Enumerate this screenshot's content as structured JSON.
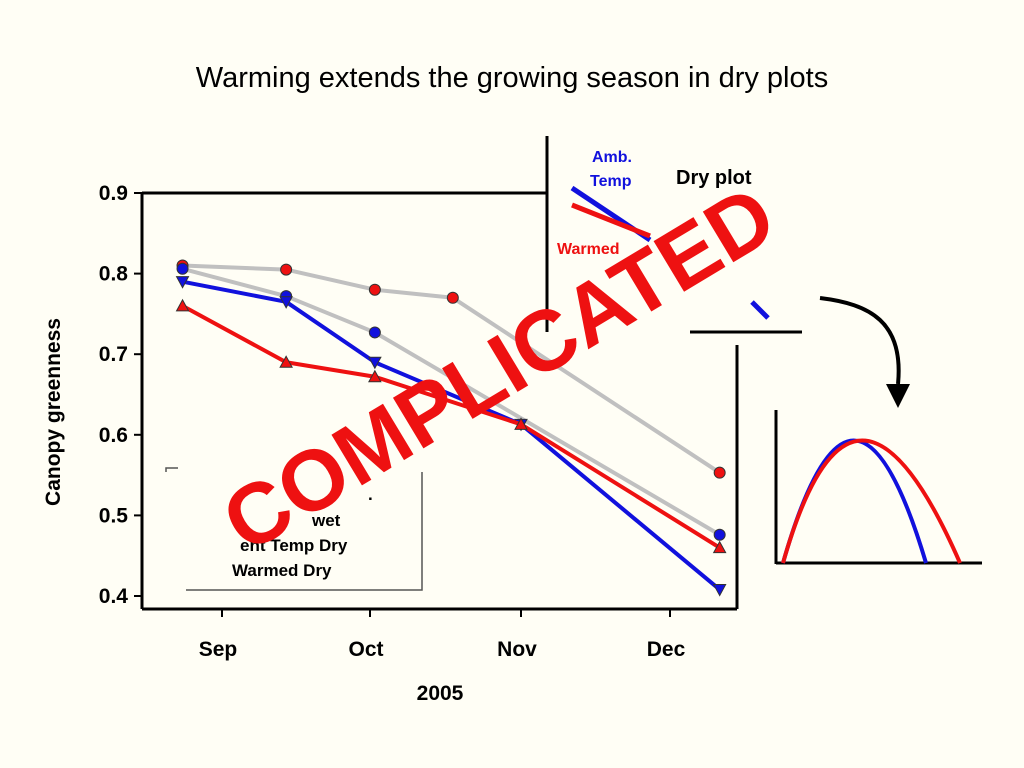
{
  "title": "Warming extends the growing season in dry plots",
  "stamp": "COMPLICATED",
  "colors": {
    "background": "#fffef5",
    "red": "#ee1111",
    "blue": "#1111dd",
    "gray": "#c0c0c0",
    "black": "#000000"
  },
  "chart_data": {
    "type": "line",
    "title": "",
    "xlabel": "2005",
    "ylabel": "Canopy greenness",
    "ylim": [
      0.4,
      0.9
    ],
    "yticks": [
      "0.4",
      "0.5",
      "0.6",
      "0.7",
      "0.8",
      "0.9"
    ],
    "x_categories": [
      "Sep",
      "Oct",
      "Nov",
      "Dec"
    ],
    "series": [
      {
        "name": "",
        "key": "wet_upper",
        "color": "gray",
        "marker": "circle",
        "marker_color": "red",
        "points": [
          [
            "2005-08-24",
            0.81
          ],
          [
            "2005-09-14",
            0.805
          ],
          [
            "2005-10-02",
            0.78
          ],
          [
            "2005-10-18",
            0.77
          ],
          [
            "2005-12-11",
            0.553
          ]
        ]
      },
      {
        "name": "",
        "key": "wet_lower",
        "color": "gray",
        "marker": "circle",
        "marker_color": "blue",
        "points": [
          [
            "2005-08-24",
            0.806
          ],
          [
            "2005-09-14",
            0.772
          ],
          [
            "2005-10-02",
            0.727
          ],
          [
            "2005-12-11",
            0.476
          ]
        ]
      },
      {
        "name": "Ambient Temp Dry",
        "key": "ambient_dry",
        "color": "blue",
        "marker": "triangle-down",
        "marker_color": "blue",
        "points": [
          [
            "2005-08-24",
            0.79
          ],
          [
            "2005-09-14",
            0.765
          ],
          [
            "2005-10-02",
            0.69
          ],
          [
            "2005-11-01",
            0.613
          ],
          [
            "2005-12-11",
            0.408
          ]
        ]
      },
      {
        "name": "Warmed Dry",
        "key": "warmed_dry",
        "color": "red",
        "marker": "triangle-up",
        "marker_color": "red",
        "points": [
          [
            "2005-08-24",
            0.76
          ],
          [
            "2005-09-14",
            0.69
          ],
          [
            "2005-10-02",
            0.672
          ],
          [
            "2005-11-01",
            0.613
          ],
          [
            "2005-12-11",
            0.46
          ]
        ]
      }
    ],
    "legend": {
      "placement": "bottom-left",
      "entries": [
        "wet",
        "ent Temp Dry",
        "Warmed Dry"
      ]
    }
  },
  "inset_dry": {
    "label": "Dry plot",
    "amb_label_1": "Amb.",
    "amb_label_2": "Temp",
    "warmed_label": "Warmed"
  },
  "inset_curve": {
    "description_labels": []
  }
}
